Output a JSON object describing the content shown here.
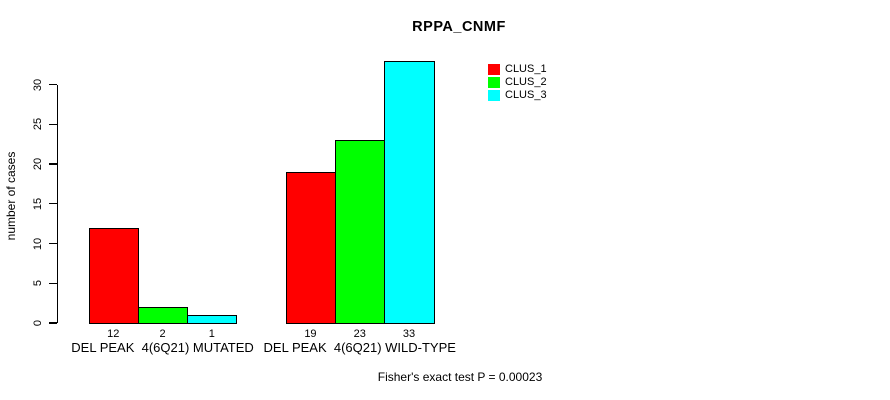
{
  "chart_data": {
    "type": "bar",
    "title": "RPPA_CNMF",
    "xlabel": "",
    "ylabel": "number of cases",
    "categories": [
      "DEL PEAK  4(6Q21) MUTATED",
      "DEL PEAK  4(6Q21) WILD-TYPE"
    ],
    "series": [
      {
        "name": "CLUS_1",
        "color": "#ff0000",
        "values": [
          12,
          19
        ]
      },
      {
        "name": "CLUS_2",
        "color": "#00ff00",
        "values": [
          2,
          23
        ]
      },
      {
        "name": "CLUS_3",
        "color": "#00ffff",
        "values": [
          1,
          33
        ]
      }
    ],
    "bar_value_labels": [
      [
        12,
        2,
        1
      ],
      [
        19,
        23,
        33
      ]
    ],
    "yticks": [
      0,
      5,
      10,
      15,
      20,
      25,
      30
    ],
    "ylim": [
      0,
      33
    ],
    "grid": false,
    "legend_position": "top-right",
    "annotation": "Fisher's exact test P = 0.00023"
  }
}
